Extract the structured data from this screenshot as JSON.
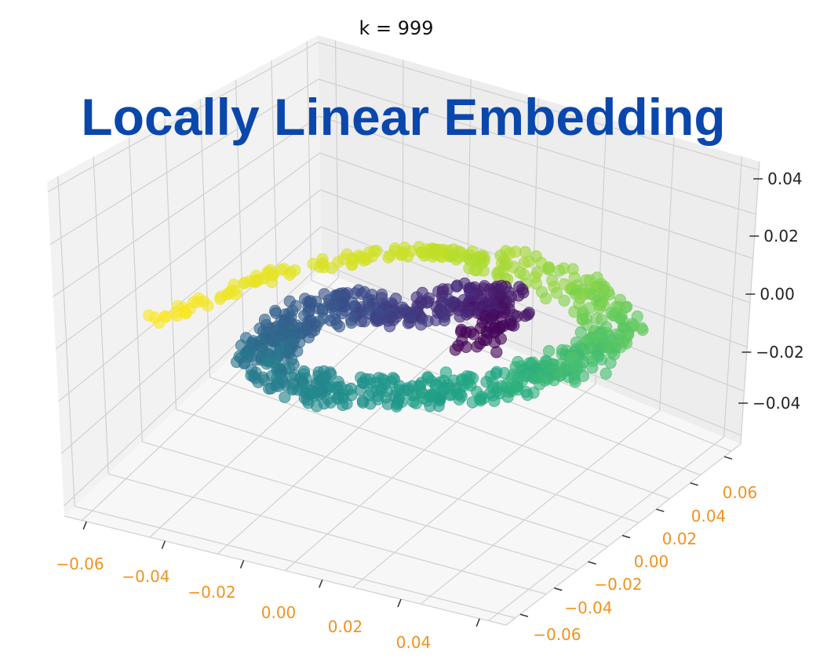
{
  "chart_data": {
    "type": "scatter",
    "projection": "3d",
    "title": "k = 999",
    "overlay_title": "Locally Linear Embedding",
    "colormap": "viridis",
    "grid": true,
    "x_ticks": [
      "−0.06",
      "−0.04",
      "−0.02",
      "0.00",
      "0.02",
      "0.04"
    ],
    "y_ticks": [
      "−0.06",
      "−0.04",
      "−0.02",
      "0.00",
      "0.02",
      "0.04",
      "0.06"
    ],
    "z_ticks": [
      "−0.04",
      "−0.02",
      "0.00",
      "0.02",
      "0.04"
    ],
    "xlim": [
      -0.07,
      0.05
    ],
    "ylim": [
      -0.07,
      0.07
    ],
    "zlim": [
      -0.05,
      0.05
    ],
    "colors": {
      "tick_label_xy": "#f0921e",
      "tick_label_z": "#222222",
      "overlay_title": "#0a47ad",
      "pane_back": "#ededed",
      "pane_side": "#f2f2f2",
      "pane_floor": "#f7f7f7",
      "grid": "#d0d0d0"
    },
    "point_count": 1000,
    "manifold": "swiss-roll-like curved strip, color ramps dark purple (inner) to yellow (outer end)"
  }
}
